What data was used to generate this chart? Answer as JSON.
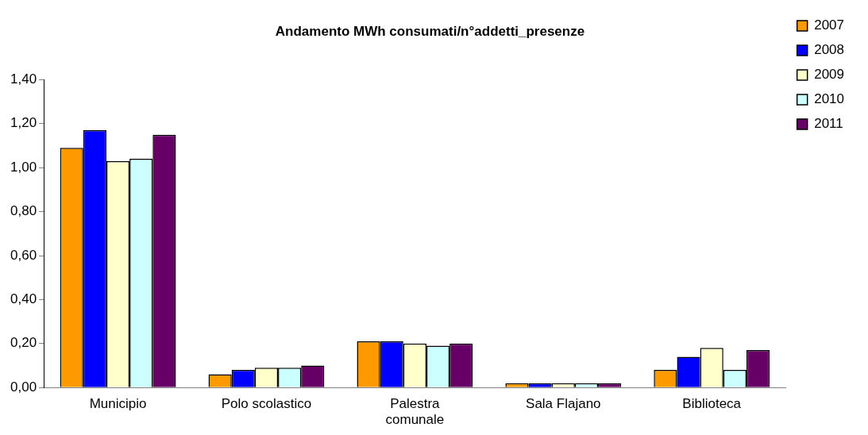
{
  "chart_data": {
    "type": "bar",
    "title": "Andamento MWh consumati/n°addetti_presenze",
    "categories": [
      "Municipio",
      "Polo scolastico",
      "Palestra comunale",
      "Sala Flajano",
      "Biblioteca"
    ],
    "series": [
      {
        "name": "2007",
        "color": "#ff9900",
        "values": [
          1.09,
          0.06,
          0.21,
          0.02,
          0.08
        ]
      },
      {
        "name": "2008",
        "color": "#0000ff",
        "values": [
          1.17,
          0.08,
          0.21,
          0.02,
          0.14
        ]
      },
      {
        "name": "2009",
        "color": "#ffffcc",
        "values": [
          1.03,
          0.09,
          0.2,
          0.02,
          0.18
        ]
      },
      {
        "name": "2010",
        "color": "#ccffff",
        "values": [
          1.04,
          0.09,
          0.19,
          0.02,
          0.08
        ]
      },
      {
        "name": "2011",
        "color": "#660066",
        "values": [
          1.15,
          0.1,
          0.2,
          0.02,
          0.17
        ]
      }
    ],
    "ylim": [
      0,
      1.4
    ],
    "yticks": [
      {
        "value": 0,
        "label": "0,00"
      },
      {
        "value": 0.2,
        "label": "0,20"
      },
      {
        "value": 0.4,
        "label": "0,40"
      },
      {
        "value": 0.6,
        "label": "0,60"
      },
      {
        "value": 0.8,
        "label": "0,80"
      },
      {
        "value": 1,
        "label": "1,00"
      },
      {
        "value": 1.2,
        "label": "1,20"
      },
      {
        "value": 1.4,
        "label": "1,40"
      }
    ],
    "grid": false,
    "legend": "right"
  }
}
